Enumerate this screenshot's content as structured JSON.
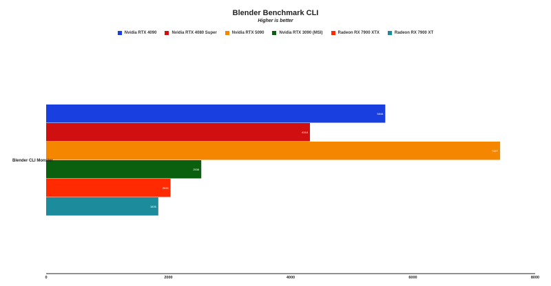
{
  "chart_data": {
    "type": "bar",
    "orientation": "horizontal",
    "title": "Blender Benchmark CLI",
    "subtitle": "Higher is better",
    "xlabel": "",
    "ylabel": "",
    "categories": [
      "Blender CLI Monster"
    ],
    "xlim": [
      0,
      8000
    ],
    "xticks": [
      "0",
      "2000",
      "4000",
      "6000",
      "8000"
    ],
    "grid": false,
    "legend_position": "top",
    "series": [
      {
        "name": "Nvidia RTX 4090",
        "values": [
          5548
        ],
        "label": "5548",
        "color": "#1a3fe0"
      },
      {
        "name": "Nvidia RTX 4080 Super",
        "values": [
          4316
        ],
        "label": "4316",
        "color": "#d01010"
      },
      {
        "name": "Nvidia RTX 5090",
        "values": [
          7427
        ],
        "label": "7427",
        "color": "#f58700"
      },
      {
        "name": "Nvidia RTX 3090 (MSI)",
        "values": [
          2538
        ],
        "label": "2538",
        "color": "#0b6010"
      },
      {
        "name": "Radeon RX 7900 XTX",
        "values": [
          2035
        ],
        "label": "2035",
        "color": "#ff2a00"
      },
      {
        "name": "Radeon RX 7900 XT",
        "values": [
          1835
        ],
        "label": "1835",
        "color": "#1c8b9c"
      }
    ]
  }
}
